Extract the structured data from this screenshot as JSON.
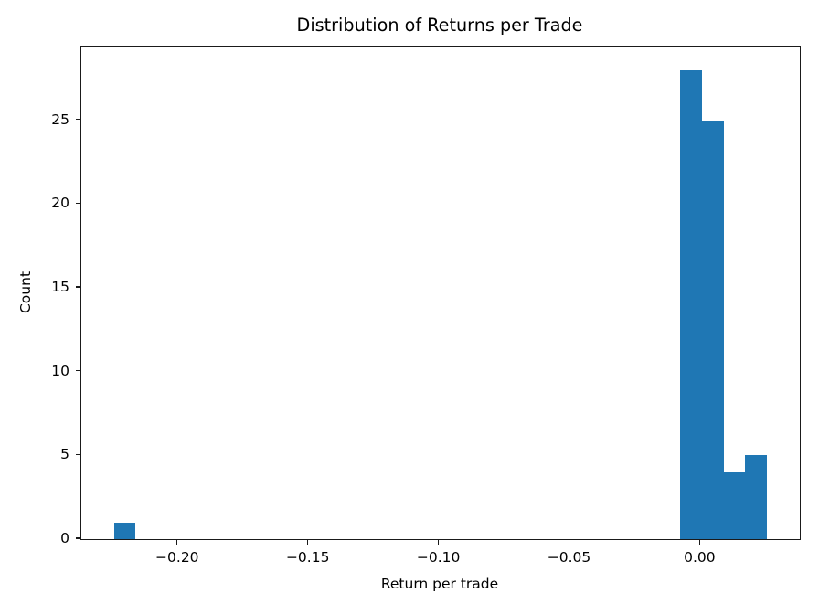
{
  "chart_data": {
    "type": "bar",
    "subtype": "histogram",
    "title": "Distribution of Returns per Trade",
    "xlabel": "Return per trade",
    "ylabel": "Count",
    "bar_color": "#1f77b4",
    "axis_color": "#1a1a1a",
    "text_color": "#000000",
    "background_color": "#ffffff",
    "grid": false,
    "legend": null,
    "xlim": [
      -0.237,
      0.038
    ],
    "ylim": [
      0,
      29.4
    ],
    "xticks": [
      -0.2,
      -0.15,
      -0.1,
      -0.05,
      0.0
    ],
    "xtick_labels": [
      "−0.20",
      "−0.15",
      "−0.10",
      "−0.05",
      "0.00"
    ],
    "yticks": [
      0,
      5,
      10,
      15,
      20,
      25
    ],
    "ytick_labels": [
      "0",
      "5",
      "10",
      "15",
      "20",
      "25"
    ],
    "histogram": {
      "bin_start": -0.2245,
      "bin_width": 0.008333,
      "n_bins": 30,
      "counts": [
        1,
        0,
        0,
        0,
        0,
        0,
        0,
        0,
        0,
        0,
        0,
        0,
        0,
        0,
        0,
        0,
        0,
        0,
        0,
        0,
        0,
        0,
        0,
        0,
        0,
        0,
        28,
        25,
        4,
        5
      ]
    }
  }
}
